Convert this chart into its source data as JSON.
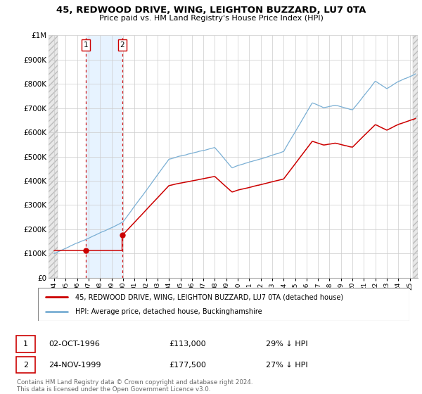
{
  "title": "45, REDWOOD DRIVE, WING, LEIGHTON BUZZARD, LU7 0TA",
  "subtitle": "Price paid vs. HM Land Registry's House Price Index (HPI)",
  "legend_entry1": "45, REDWOOD DRIVE, WING, LEIGHTON BUZZARD, LU7 0TA (detached house)",
  "legend_entry2": "HPI: Average price, detached house, Buckinghamshire",
  "footnote": "Contains HM Land Registry data © Crown copyright and database right 2024.\nThis data is licensed under the Open Government Licence v3.0.",
  "sale1_date": "02-OCT-1996",
  "sale1_price": 113000,
  "sale1_label": "29% ↓ HPI",
  "sale2_date": "24-NOV-1999",
  "sale2_price": 177500,
  "sale2_label": "27% ↓ HPI",
  "ylim": [
    0,
    1000000
  ],
  "yticks": [
    0,
    100000,
    200000,
    300000,
    400000,
    500000,
    600000,
    700000,
    800000,
    900000,
    1000000
  ],
  "ytick_labels": [
    "£0",
    "£100K",
    "£200K",
    "£300K",
    "£400K",
    "£500K",
    "£600K",
    "£700K",
    "£800K",
    "£900K",
    "£1M"
  ],
  "price_color": "#cc0000",
  "hpi_color": "#7aafd4",
  "sale1_x": 1996.75,
  "sale2_x": 1999.917,
  "xlim_left": 1993.5,
  "xlim_right": 2025.7
}
